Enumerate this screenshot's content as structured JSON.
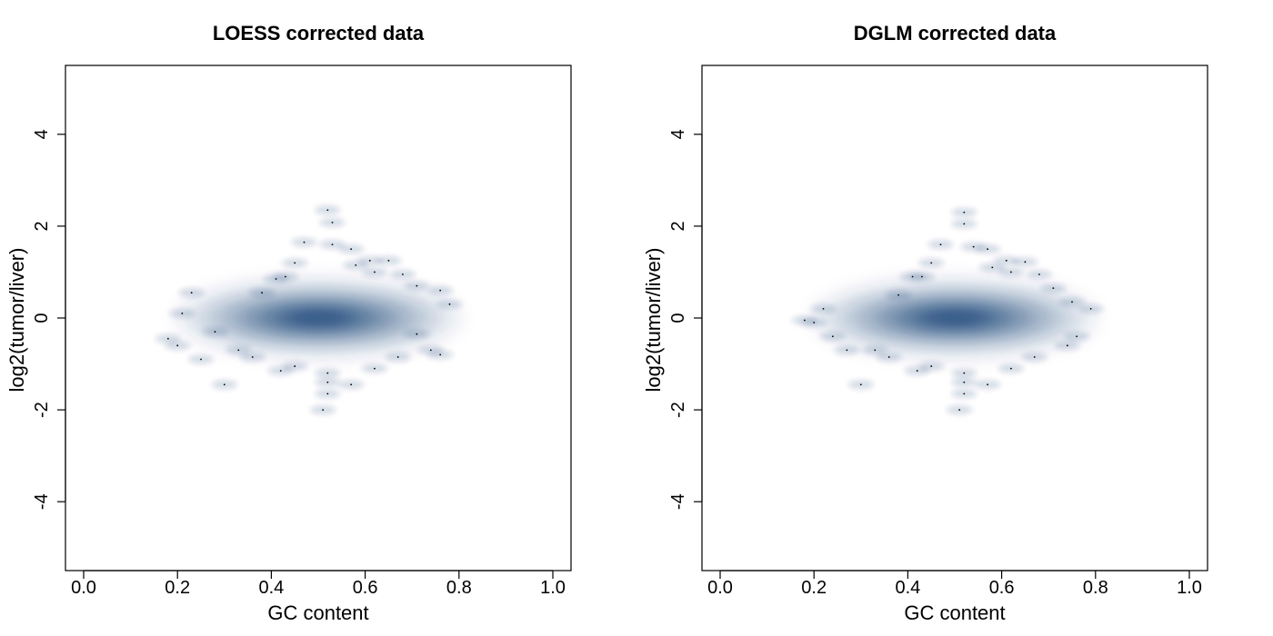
{
  "chart_data": [
    {
      "type": "scatter",
      "subtype": "smoothed-density-scatter",
      "title": "LOESS corrected data",
      "xlabel": "GC content",
      "ylabel": "log2(tumor/liver)",
      "xlim": [
        0,
        1
      ],
      "ylim": [
        -5.5,
        5.5
      ],
      "xticks": [
        "0.0",
        "0.2",
        "0.4",
        "0.6",
        "0.8",
        "1.0"
      ],
      "yticks": [
        "-4",
        "-2",
        "0",
        "2",
        "4"
      ],
      "grid": false,
      "density_color": "#08306b",
      "density_center": {
        "x": 0.5,
        "y": 0.0
      },
      "outlier_points": [
        {
          "x": 0.52,
          "y": 2.35
        },
        {
          "x": 0.53,
          "y": 2.08
        },
        {
          "x": 0.47,
          "y": 1.65
        },
        {
          "x": 0.53,
          "y": 1.6
        },
        {
          "x": 0.57,
          "y": 1.5
        },
        {
          "x": 0.61,
          "y": 1.25
        },
        {
          "x": 0.65,
          "y": 1.25
        },
        {
          "x": 0.58,
          "y": 1.15
        },
        {
          "x": 0.62,
          "y": 1.0
        },
        {
          "x": 0.68,
          "y": 0.95
        },
        {
          "x": 0.45,
          "y": 1.2
        },
        {
          "x": 0.43,
          "y": 0.9
        },
        {
          "x": 0.41,
          "y": 0.85
        },
        {
          "x": 0.23,
          "y": 0.55
        },
        {
          "x": 0.38,
          "y": 0.55
        },
        {
          "x": 0.71,
          "y": 0.7
        },
        {
          "x": 0.76,
          "y": 0.6
        },
        {
          "x": 0.78,
          "y": 0.3
        },
        {
          "x": 0.21,
          "y": 0.1
        },
        {
          "x": 0.18,
          "y": -0.45
        },
        {
          "x": 0.2,
          "y": -0.6
        },
        {
          "x": 0.25,
          "y": -0.9
        },
        {
          "x": 0.3,
          "y": -1.45
        },
        {
          "x": 0.33,
          "y": -0.7
        },
        {
          "x": 0.36,
          "y": -0.85
        },
        {
          "x": 0.42,
          "y": -1.15
        },
        {
          "x": 0.45,
          "y": -1.05
        },
        {
          "x": 0.52,
          "y": -1.2
        },
        {
          "x": 0.52,
          "y": -1.4
        },
        {
          "x": 0.52,
          "y": -1.65
        },
        {
          "x": 0.51,
          "y": -2.0
        },
        {
          "x": 0.57,
          "y": -1.45
        },
        {
          "x": 0.62,
          "y": -1.1
        },
        {
          "x": 0.67,
          "y": -0.85
        },
        {
          "x": 0.74,
          "y": -0.7
        },
        {
          "x": 0.76,
          "y": -0.8
        },
        {
          "x": 0.28,
          "y": -0.3
        },
        {
          "x": 0.71,
          "y": -0.35
        }
      ]
    },
    {
      "type": "scatter",
      "subtype": "smoothed-density-scatter",
      "title": "DGLM corrected data",
      "xlabel": "GC content",
      "ylabel": "log2(tumor/liver)",
      "xlim": [
        0,
        1
      ],
      "ylim": [
        -5.5,
        5.5
      ],
      "xticks": [
        "0.0",
        "0.2",
        "0.4",
        "0.6",
        "0.8",
        "1.0"
      ],
      "yticks": [
        "-4",
        "-2",
        "0",
        "2",
        "4"
      ],
      "grid": false,
      "density_color": "#08306b",
      "density_center": {
        "x": 0.5,
        "y": 0.0
      },
      "outlier_points": [
        {
          "x": 0.52,
          "y": 2.3
        },
        {
          "x": 0.52,
          "y": 2.05
        },
        {
          "x": 0.47,
          "y": 1.6
        },
        {
          "x": 0.54,
          "y": 1.55
        },
        {
          "x": 0.57,
          "y": 1.5
        },
        {
          "x": 0.61,
          "y": 1.25
        },
        {
          "x": 0.65,
          "y": 1.22
        },
        {
          "x": 0.58,
          "y": 1.1
        },
        {
          "x": 0.62,
          "y": 1.0
        },
        {
          "x": 0.68,
          "y": 0.95
        },
        {
          "x": 0.45,
          "y": 1.2
        },
        {
          "x": 0.43,
          "y": 0.9
        },
        {
          "x": 0.41,
          "y": 0.9
        },
        {
          "x": 0.22,
          "y": 0.2
        },
        {
          "x": 0.38,
          "y": 0.5
        },
        {
          "x": 0.71,
          "y": 0.65
        },
        {
          "x": 0.75,
          "y": 0.35
        },
        {
          "x": 0.79,
          "y": 0.2
        },
        {
          "x": 0.18,
          "y": -0.05
        },
        {
          "x": 0.2,
          "y": -0.1
        },
        {
          "x": 0.24,
          "y": -0.4
        },
        {
          "x": 0.27,
          "y": -0.7
        },
        {
          "x": 0.3,
          "y": -1.45
        },
        {
          "x": 0.33,
          "y": -0.7
        },
        {
          "x": 0.36,
          "y": -0.85
        },
        {
          "x": 0.42,
          "y": -1.15
        },
        {
          "x": 0.45,
          "y": -1.05
        },
        {
          "x": 0.52,
          "y": -1.2
        },
        {
          "x": 0.52,
          "y": -1.4
        },
        {
          "x": 0.52,
          "y": -1.65
        },
        {
          "x": 0.51,
          "y": -2.0
        },
        {
          "x": 0.57,
          "y": -1.45
        },
        {
          "x": 0.62,
          "y": -1.1
        },
        {
          "x": 0.67,
          "y": -0.85
        },
        {
          "x": 0.74,
          "y": -0.6
        },
        {
          "x": 0.76,
          "y": -0.4
        }
      ]
    }
  ]
}
